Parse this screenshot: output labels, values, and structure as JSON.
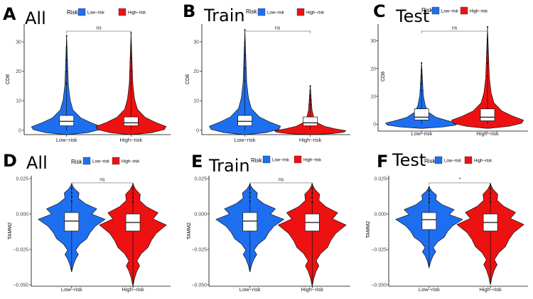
{
  "legend": {
    "title": "Risk",
    "items": [
      {
        "label": "Low−risk",
        "color": "#1e6ff0"
      },
      {
        "label": "High−risk",
        "color": "#ee1111"
      }
    ]
  },
  "chart_data": [
    {
      "type": "violin",
      "letter": "A",
      "title": "All",
      "ylabel": "CD8",
      "categories": [
        "Low−risk",
        "High−risk"
      ],
      "ylim": [
        -1.5,
        36
      ],
      "yticks": [
        "0",
        "10",
        "20",
        "30"
      ],
      "ytick_values": [
        0,
        10,
        20,
        30
      ],
      "significance": "ns",
      "series": [
        {
          "name": "Low−risk",
          "median": 3,
          "q1": 1.5,
          "q3": 5,
          "whisker_low": 0,
          "whisker_high": 32,
          "max": 32
        },
        {
          "name": "High−risk",
          "median": 2.5,
          "q1": 1.5,
          "q3": 4.5,
          "whisker_low": 0,
          "whisker_high": 33,
          "max": 33
        }
      ]
    },
    {
      "type": "violin",
      "letter": "B",
      "title": "Train",
      "ylabel": "CD8",
      "categories": [
        "Low−risk",
        "High−risk"
      ],
      "ylim": [
        -1.5,
        36
      ],
      "yticks": [
        "0",
        "10",
        "20",
        "30"
      ],
      "ytick_values": [
        0,
        10,
        20,
        30
      ],
      "significance": "ns",
      "series": [
        {
          "name": "Low−risk",
          "median": 3,
          "q1": 1.5,
          "q3": 5,
          "whisker_low": 0,
          "whisker_high": 34,
          "max": 34
        },
        {
          "name": "High−risk",
          "median": 2.5,
          "q1": 1.5,
          "q3": 4.5,
          "whisker_low": 0,
          "whisker_high": 15,
          "max": 15
        }
      ]
    },
    {
      "type": "violin",
      "letter": "C",
      "title": "Test",
      "ylabel": "CD8",
      "categories": [
        "Low−risk",
        "High−risk"
      ],
      "ylim": [
        -2.5,
        36
      ],
      "yticks": [
        "0",
        "10",
        "20",
        "30"
      ],
      "ytick_values": [
        0,
        10,
        20,
        30
      ],
      "significance": "ns",
      "series": [
        {
          "name": "Low−risk",
          "median": 2.5,
          "q1": 1.5,
          "q3": 5.5,
          "whisker_low": 0,
          "whisker_high": 22,
          "max": 22
        },
        {
          "name": "High−risk",
          "median": 2.5,
          "q1": 1.2,
          "q3": 5.5,
          "whisker_low": 0,
          "whisker_high": 35,
          "max": 35
        }
      ]
    },
    {
      "type": "violin",
      "letter": "D",
      "title": "All",
      "ylabel": "TAMM2",
      "categories": [
        "Low−risk",
        "High−risk"
      ],
      "ylim": [
        -0.051,
        0.027
      ],
      "yticks": [
        "0.025",
        "0.000",
        "−0.025",
        "−0.050"
      ],
      "ytick_values": [
        0.025,
        0,
        -0.025,
        -0.05
      ],
      "significance": "ns",
      "series": [
        {
          "name": "Low−risk",
          "median": -0.005,
          "q1": -0.012,
          "q3": 0.001,
          "whisker_low": -0.04,
          "whisker_high": 0.021,
          "max": 0.021
        },
        {
          "name": "High−risk",
          "median": -0.006,
          "q1": -0.012,
          "q3": 0.0,
          "whisker_low": -0.05,
          "whisker_high": 0.021,
          "max": 0.021
        }
      ]
    },
    {
      "type": "violin",
      "letter": "E",
      "title": "Train",
      "ylabel": "TAMM2",
      "categories": [
        "Low−risk",
        "High−risk"
      ],
      "ylim": [
        -0.051,
        0.027
      ],
      "yticks": [
        "0.025",
        "0.000",
        "−0.025",
        "−0.050"
      ],
      "ytick_values": [
        0.025,
        0,
        -0.025,
        -0.05
      ],
      "significance": "ns",
      "series": [
        {
          "name": "Low−risk",
          "median": -0.005,
          "q1": -0.012,
          "q3": 0.001,
          "whisker_low": -0.04,
          "whisker_high": 0.021,
          "max": 0.021
        },
        {
          "name": "High−risk",
          "median": -0.006,
          "q1": -0.012,
          "q3": 0.0,
          "whisker_low": -0.05,
          "whisker_high": 0.021,
          "max": 0.021
        }
      ]
    },
    {
      "type": "violin",
      "letter": "F",
      "title": "Test",
      "ylabel": "TAMM2",
      "categories": [
        "Low−risk",
        "High−risk"
      ],
      "ylim": [
        -0.051,
        0.027
      ],
      "yticks": [
        "0.025",
        "0.000",
        "−0.025",
        "−0.050"
      ],
      "ytick_values": [
        0.025,
        0,
        -0.025,
        -0.05
      ],
      "significance": "*",
      "series": [
        {
          "name": "Low−risk",
          "median": -0.004,
          "q1": -0.011,
          "q3": 0.001,
          "whisker_low": -0.037,
          "whisker_high": 0.019,
          "max": 0.019
        },
        {
          "name": "High−risk",
          "median": -0.006,
          "q1": -0.012,
          "q3": 0.0,
          "whisker_low": -0.049,
          "whisker_high": 0.021,
          "max": 0.021
        }
      ]
    }
  ]
}
